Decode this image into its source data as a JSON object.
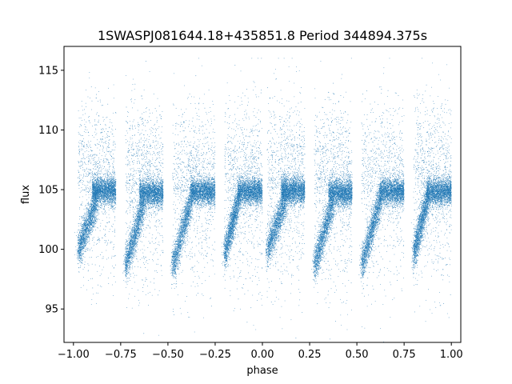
{
  "chart_data": {
    "type": "scatter",
    "title": "1SWASPJ081644.18+435851.8 Period 344894.375s",
    "xlabel": "phase",
    "ylabel": "flux",
    "xlim": [
      -1.05,
      1.05
    ],
    "ylim": [
      92.2,
      117.0
    ],
    "grid": false,
    "legend": "none",
    "x_ticks": [
      -1.0,
      -0.75,
      -0.5,
      -0.25,
      0.0,
      0.25,
      0.5,
      0.75,
      1.0
    ],
    "x_tick_labels": [
      "−1.00",
      "−0.75",
      "−0.50",
      "−0.25",
      "0.00",
      "0.25",
      "0.50",
      "0.75",
      "1.00"
    ],
    "y_ticks": [
      95,
      100,
      105,
      110,
      115
    ],
    "y_tick_labels": [
      "95",
      "100",
      "105",
      "110",
      "115"
    ],
    "series": [
      {
        "color": "#1f77b4",
        "marker_size": 0.8,
        "n_points": 40000,
        "phase_coverage": [
          -1.0,
          1.0
        ],
        "cycles": [
          {
            "phase_range": [
              -0.975,
              -0.775
            ],
            "rise": {
              "x": [
                -0.975,
                -0.875
              ],
              "y": [
                99.8,
                104.2
              ]
            },
            "plateau": {
              "x": [
                -0.9,
                -0.775
              ],
              "y_mean": 104.9,
              "y_scatter": 0.55
            }
          },
          {
            "phase_range": [
              -0.725,
              -0.525
            ],
            "rise": {
              "x": [
                -0.725,
                -0.625
              ],
              "y": [
                98.5,
                104.0
              ]
            },
            "plateau": {
              "x": [
                -0.65,
                -0.525
              ],
              "y_mean": 104.7,
              "y_scatter": 0.55
            }
          },
          {
            "phase_range": [
              -0.475,
              -0.25
            ],
            "rise": {
              "x": [
                -0.475,
                -0.375
              ],
              "y": [
                98.5,
                104.2
              ]
            },
            "plateau": {
              "x": [
                -0.38,
                -0.25
              ],
              "y_mean": 104.8,
              "y_scatter": 0.55
            }
          },
          {
            "phase_range": [
              -0.2,
              0.0
            ],
            "rise": {
              "x": [
                -0.2,
                -0.125
              ],
              "y": [
                99.5,
                104.3
              ]
            },
            "plateau": {
              "x": [
                -0.13,
                0.0
              ],
              "y_mean": 104.8,
              "y_scatter": 0.55
            }
          },
          {
            "phase_range": [
              0.025,
              0.225
            ],
            "rise": {
              "x": [
                0.025,
                0.125
              ],
              "y": [
                99.8,
                104.2
              ]
            },
            "plateau": {
              "x": [
                0.1,
                0.225
              ],
              "y_mean": 104.9,
              "y_scatter": 0.55
            }
          },
          {
            "phase_range": [
              0.275,
              0.475
            ],
            "rise": {
              "x": [
                0.275,
                0.375
              ],
              "y": [
                98.5,
                104.0
              ]
            },
            "plateau": {
              "x": [
                0.35,
                0.475
              ],
              "y_mean": 104.7,
              "y_scatter": 0.55
            }
          },
          {
            "phase_range": [
              0.525,
              0.75
            ],
            "rise": {
              "x": [
                0.525,
                0.625
              ],
              "y": [
                98.5,
                104.2
              ]
            },
            "plateau": {
              "x": [
                0.62,
                0.75
              ],
              "y_mean": 104.8,
              "y_scatter": 0.55
            }
          },
          {
            "phase_range": [
              0.8,
              1.0
            ],
            "rise": {
              "x": [
                0.8,
                0.875
              ],
              "y": [
                99.5,
                104.3
              ]
            },
            "plateau": {
              "x": [
                0.87,
                1.0
              ],
              "y_mean": 104.8,
              "y_scatter": 0.55
            }
          }
        ]
      }
    ]
  }
}
